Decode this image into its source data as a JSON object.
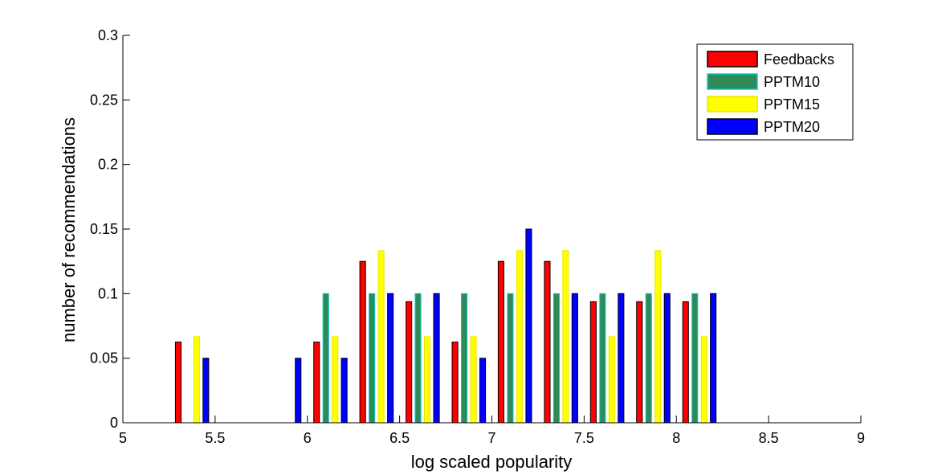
{
  "chart_data": {
    "type": "bar",
    "xlabel": "log scaled popularity",
    "ylabel": "number of recommendations",
    "xlim": [
      5,
      9
    ],
    "ylim": [
      0,
      0.3
    ],
    "xticks": [
      "5",
      "5.5",
      "6",
      "6.5",
      "7",
      "7.5",
      "8",
      "8.5",
      "9"
    ],
    "yticks": [
      "0",
      "0.05",
      "0.1",
      "0.15",
      "0.2",
      "0.25",
      "0.3"
    ],
    "legend_position": "top-right",
    "grid": false,
    "bin_centers": [
      5.125,
      5.375,
      5.625,
      5.875,
      6.125,
      6.375,
      6.625,
      6.875,
      7.125,
      7.375,
      7.625,
      7.875,
      8.125,
      8.375,
      8.625,
      8.875
    ],
    "series": [
      {
        "name": "Feedbacks",
        "color": "#ff0000",
        "edge": "#000000",
        "values": [
          0,
          0.0625,
          0,
          0,
          0.0625,
          0.125,
          0.09375,
          0.0625,
          0.125,
          0.125,
          0.09375,
          0.09375,
          0.09375,
          0,
          0,
          0
        ]
      },
      {
        "name": "PPTM10",
        "color": "#2e8b57",
        "edge": "#00ced1",
        "values": [
          0,
          0,
          0,
          0,
          0.1,
          0.1,
          0.1,
          0.1,
          0.1,
          0.1,
          0.1,
          0.1,
          0.1,
          0,
          0,
          0
        ]
      },
      {
        "name": "PPTM15",
        "color": "#ffff00",
        "edge": "#e8e800",
        "values": [
          0,
          0.0667,
          0,
          0,
          0.0667,
          0.1333,
          0.0667,
          0.0667,
          0.1333,
          0.1333,
          0.0667,
          0.1333,
          0.0667,
          0,
          0,
          0
        ]
      },
      {
        "name": "PPTM20",
        "color": "#0000ff",
        "edge": "#000000",
        "values": [
          0,
          0.05,
          0,
          0.05,
          0.05,
          0.1,
          0.1,
          0.05,
          0.15,
          0.1,
          0.1,
          0.1,
          0.1,
          0,
          0,
          0
        ]
      }
    ]
  }
}
